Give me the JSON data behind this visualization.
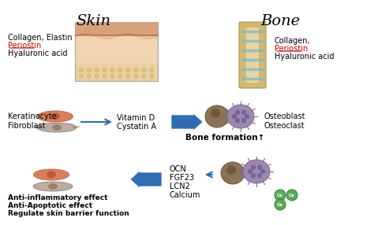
{
  "title_skin": "Skin",
  "title_bone": "Bone",
  "skin_components": [
    "Collagen, Elastin",
    "Periostin",
    "Hyaluronic acid"
  ],
  "bone_components": [
    "Collagen,",
    "Periostin",
    "Hyaluronic acid"
  ],
  "skin_cells": [
    "Keratinocyte",
    "Fibroblast"
  ],
  "bone_cells": [
    "Osteoblast",
    "Osteoclast"
  ],
  "bone_formation": "Bone formation↑",
  "arrow_labels": [
    "Vitamin D",
    "Cystatin A"
  ],
  "return_labels": [
    "OCN",
    "FGF23",
    "LCN2",
    "Calcium"
  ],
  "skin_effects": [
    "Anti-inflammatory effect",
    "Anti-Apoptotic effect",
    "Regulate skin barrier function"
  ],
  "bg_color": "#ffffff",
  "title_fontsize": 14,
  "label_fontsize": 7,
  "arrow_color": "#2e6db4",
  "periostin_color": "#cc0000",
  "calcium_color": "#5aaa5a"
}
